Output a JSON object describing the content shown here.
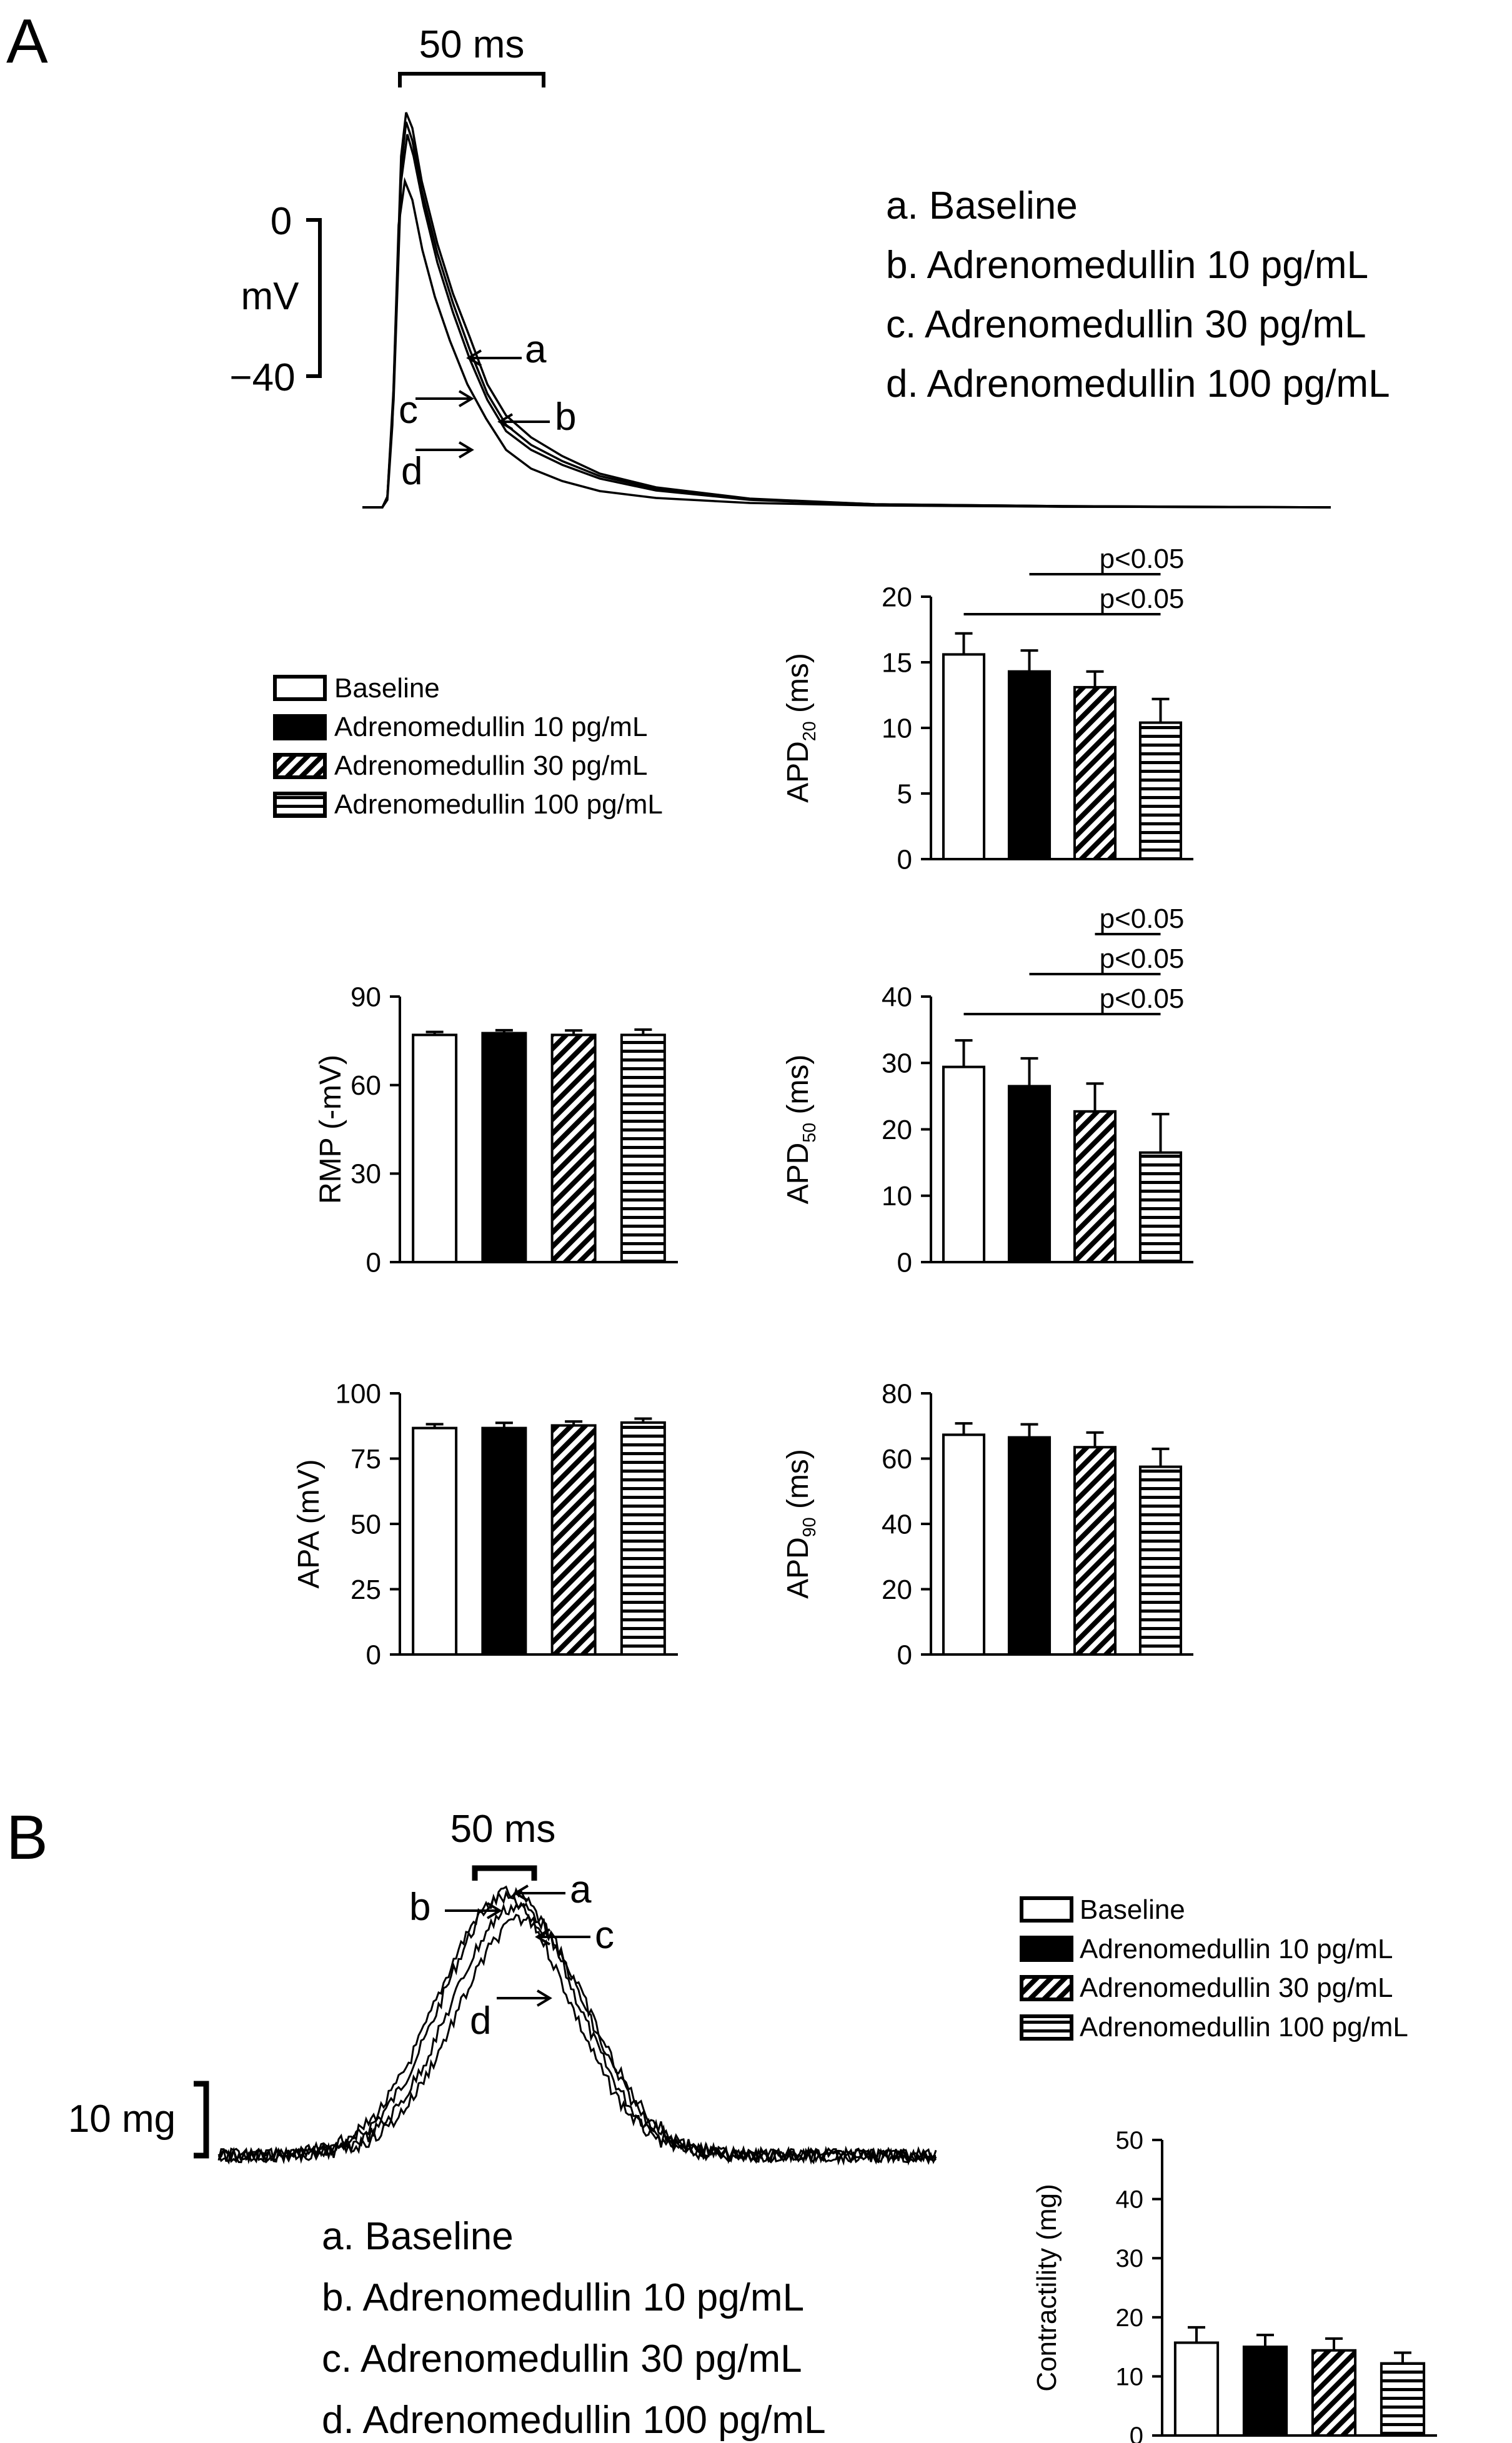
{
  "panel_a": {
    "label": "A",
    "scale_time": "50 ms",
    "scale_volt_top": "0",
    "scale_volt_unit": "mV",
    "scale_volt_bottom": "−40",
    "trace_labels": [
      "a",
      "b",
      "c",
      "d"
    ],
    "legend_text": [
      "a. Baseline",
      "b. Adrenomedullin 10 pg/mL",
      "c. Adrenomedullin 30 pg/mL",
      "d. Adrenomedullin 100 pg/mL"
    ],
    "bar_legend": [
      "Baseline",
      "Adrenomedullin 10 pg/mL",
      "Adrenomedullin 30 pg/mL",
      "Adrenomedullin 100 pg/mL"
    ]
  },
  "panel_b": {
    "label": "B",
    "scale_time": "50 ms",
    "scale_force": "10 mg",
    "trace_labels": [
      "a",
      "b",
      "c",
      "d"
    ],
    "legend_text": [
      "a. Baseline",
      "b. Adrenomedullin 10 pg/mL",
      "c. Adrenomedullin 30 pg/mL",
      "d. Adrenomedullin 100 pg/mL"
    ],
    "bar_legend": [
      "Baseline",
      "Adrenomedullin 10 pg/mL",
      "Adrenomedullin 30 pg/mL",
      "Adrenomedullin 100 pg/mL"
    ]
  },
  "chart_data": [
    {
      "id": "apd20",
      "type": "bar",
      "categories": [
        "Baseline",
        "Adrenomedullin 10 pg/mL",
        "Adrenomedullin 30 pg/mL",
        "Adrenomedullin 100 pg/mL"
      ],
      "values": [
        15.6,
        14.3,
        13.1,
        10.4
      ],
      "errors": [
        1.6,
        1.6,
        1.2,
        1.8
      ],
      "ylabel": "APD",
      "ylabel_sub": "20",
      "ylabel_unit": " (ms)",
      "ylim": [
        0,
        20
      ],
      "yticks": [
        0,
        5,
        10,
        15,
        20
      ],
      "significance": [
        {
          "from": 1,
          "to": 3,
          "label": "p<0.05"
        },
        {
          "from": 0,
          "to": 3,
          "label": "p<0.05"
        }
      ]
    },
    {
      "id": "rmp",
      "type": "bar",
      "categories": [
        "Baseline",
        "Adrenomedullin 10 pg/mL",
        "Adrenomedullin 30 pg/mL",
        "Adrenomedullin 100 pg/mL"
      ],
      "values": [
        77,
        77.6,
        77,
        77
      ],
      "errors": [
        1,
        1,
        1.5,
        1.8
      ],
      "ylabel": "RMP (-mV)",
      "ylabel_sub": "",
      "ylabel_unit": "",
      "ylim": [
        0,
        90
      ],
      "yticks": [
        0,
        30,
        60,
        90
      ],
      "significance": []
    },
    {
      "id": "apd50",
      "type": "bar",
      "categories": [
        "Baseline",
        "Adrenomedullin 10 pg/mL",
        "Adrenomedullin 30 pg/mL",
        "Adrenomedullin 100 pg/mL"
      ],
      "values": [
        29.4,
        26.5,
        22.7,
        16.5
      ],
      "errors": [
        4,
        4.2,
        4.2,
        5.8
      ],
      "ylabel": "APD",
      "ylabel_sub": "50",
      "ylabel_unit": " (ms)",
      "ylim": [
        0,
        40
      ],
      "yticks": [
        0,
        10,
        20,
        30,
        40
      ],
      "significance": [
        {
          "from": 2,
          "to": 3,
          "label": "p<0.05"
        },
        {
          "from": 1,
          "to": 3,
          "label": "p<0.05"
        },
        {
          "from": 0,
          "to": 3,
          "label": "p<0.05"
        }
      ]
    },
    {
      "id": "apa",
      "type": "bar",
      "categories": [
        "Baseline",
        "Adrenomedullin 10 pg/mL",
        "Adrenomedullin 30 pg/mL",
        "Adrenomedullin 100 pg/mL"
      ],
      "values": [
        86.7,
        86.7,
        87.7,
        88.8
      ],
      "errors": [
        1.5,
        2,
        1.5,
        1.5
      ],
      "ylabel": "APA (mV)",
      "ylabel_sub": "",
      "ylabel_unit": "",
      "ylim": [
        0,
        100
      ],
      "yticks": [
        0,
        25,
        50,
        75,
        100
      ],
      "significance": []
    },
    {
      "id": "apd90",
      "type": "bar",
      "categories": [
        "Baseline",
        "Adrenomedullin 10 pg/mL",
        "Adrenomedullin 30 pg/mL",
        "Adrenomedullin 100 pg/mL"
      ],
      "values": [
        67.3,
        66.5,
        63.5,
        57.5
      ],
      "errors": [
        3.5,
        4,
        4.5,
        5.5
      ],
      "ylabel": "APD",
      "ylabel_sub": "90",
      "ylabel_unit": " (ms)",
      "ylim": [
        0,
        80
      ],
      "yticks": [
        0,
        20,
        40,
        60,
        80
      ],
      "significance": []
    },
    {
      "id": "contractility",
      "type": "bar",
      "categories": [
        "Baseline",
        "Adrenomedullin 10 pg/mL",
        "Adrenomedullin 30 pg/mL",
        "Adrenomedullin 100 pg/mL"
      ],
      "values": [
        15.7,
        15,
        14.4,
        12.2
      ],
      "errors": [
        2.6,
        2,
        2,
        1.8
      ],
      "ylabel": "Contractility (mg)",
      "ylabel_sub": "",
      "ylabel_unit": "",
      "ylim": [
        0,
        50
      ],
      "yticks": [
        0,
        10,
        20,
        30,
        40,
        50
      ],
      "significance": []
    }
  ]
}
